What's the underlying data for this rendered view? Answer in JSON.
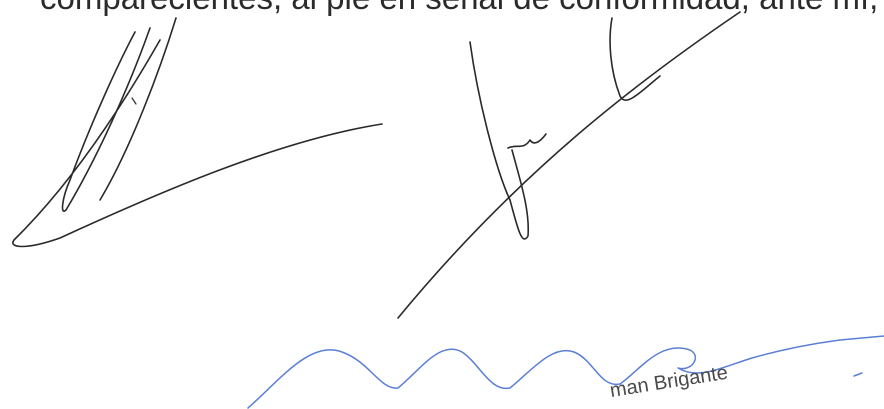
{
  "document": {
    "body_text": "comparecientes, al pie en señal de conformidad, ante mí, el",
    "stamp_text": "man Brigante"
  },
  "colors": {
    "text": "#2b2b2b",
    "signature_black": "#2a2a2a",
    "signature_blue": "#5b7fd6"
  }
}
